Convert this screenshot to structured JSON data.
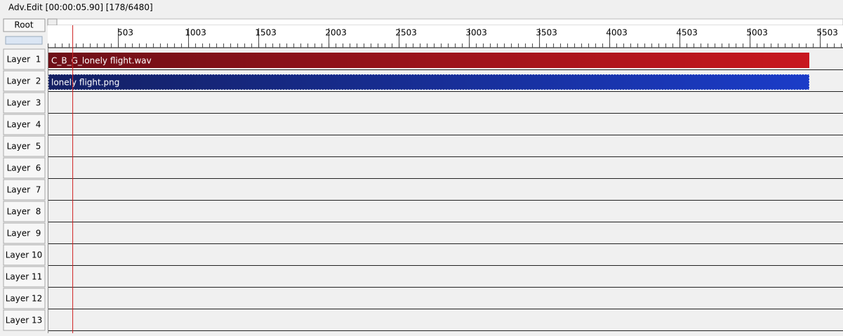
{
  "window": {
    "title": "Adv.Edit [00:00:05.90] [178/6480]"
  },
  "root_button": "Root",
  "ruler": {
    "ticks": [
      503,
      1003,
      1503,
      2003,
      2503,
      3003,
      3503,
      4003,
      4503,
      5003,
      5503
    ]
  },
  "layers": [
    "Layer  1",
    "Layer  2",
    "Layer  3",
    "Layer  4",
    "Layer  5",
    "Layer  6",
    "Layer  7",
    "Layer  8",
    "Layer  9",
    "Layer 10",
    "Layer 11",
    "Layer 12",
    "Layer 13"
  ],
  "clips": [
    {
      "layer": 0,
      "label": "C_B_G_lonely flight.wav",
      "kind": "audio"
    },
    {
      "layer": 1,
      "label": "lonely flight.png",
      "kind": "image"
    }
  ]
}
